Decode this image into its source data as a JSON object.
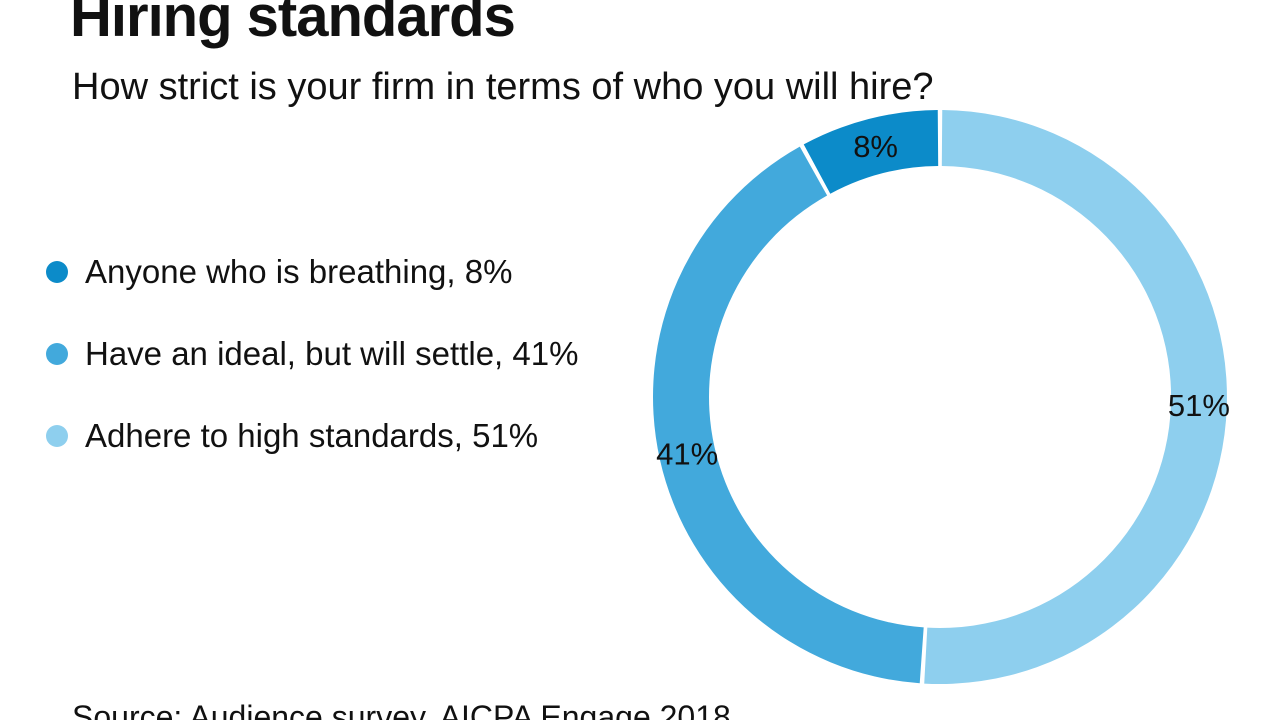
{
  "header": {
    "title": "Hiring standards",
    "subtitle": "How strict is your firm in terms of who you will hire?"
  },
  "legend": {
    "items": [
      {
        "label": "Anyone who is breathing, 8%",
        "color": "#0c8bc9"
      },
      {
        "label": "Have an ideal, but will settle, 41%",
        "color": "#42a9dc"
      },
      {
        "label": "Adhere to high standards, 51%",
        "color": "#8ecfee"
      }
    ]
  },
  "chart_data": {
    "type": "pie",
    "subtype": "donut",
    "title": "Hiring standards",
    "question": "How strict is your firm in terms of who you will hire?",
    "categories": [
      "Anyone who is breathing",
      "Have an ideal, but will settle",
      "Adhere to high standards"
    ],
    "values": [
      8,
      41,
      51
    ],
    "unit": "%",
    "slice_labels": [
      "8%",
      "41%",
      "51%"
    ],
    "colors": [
      "#0c8bc9",
      "#42a9dc",
      "#8ecfee"
    ],
    "draw_order_clockwise_from_top": [
      2,
      1,
      0
    ],
    "legend_position": "left",
    "label_placement": "on-ring at mid-angle"
  },
  "source": {
    "text": "Source: Audience survey, AICPA Engage 2018"
  },
  "colors": {
    "background": "#ffffff",
    "text": "#111111",
    "slice_gap": "#ffffff"
  }
}
